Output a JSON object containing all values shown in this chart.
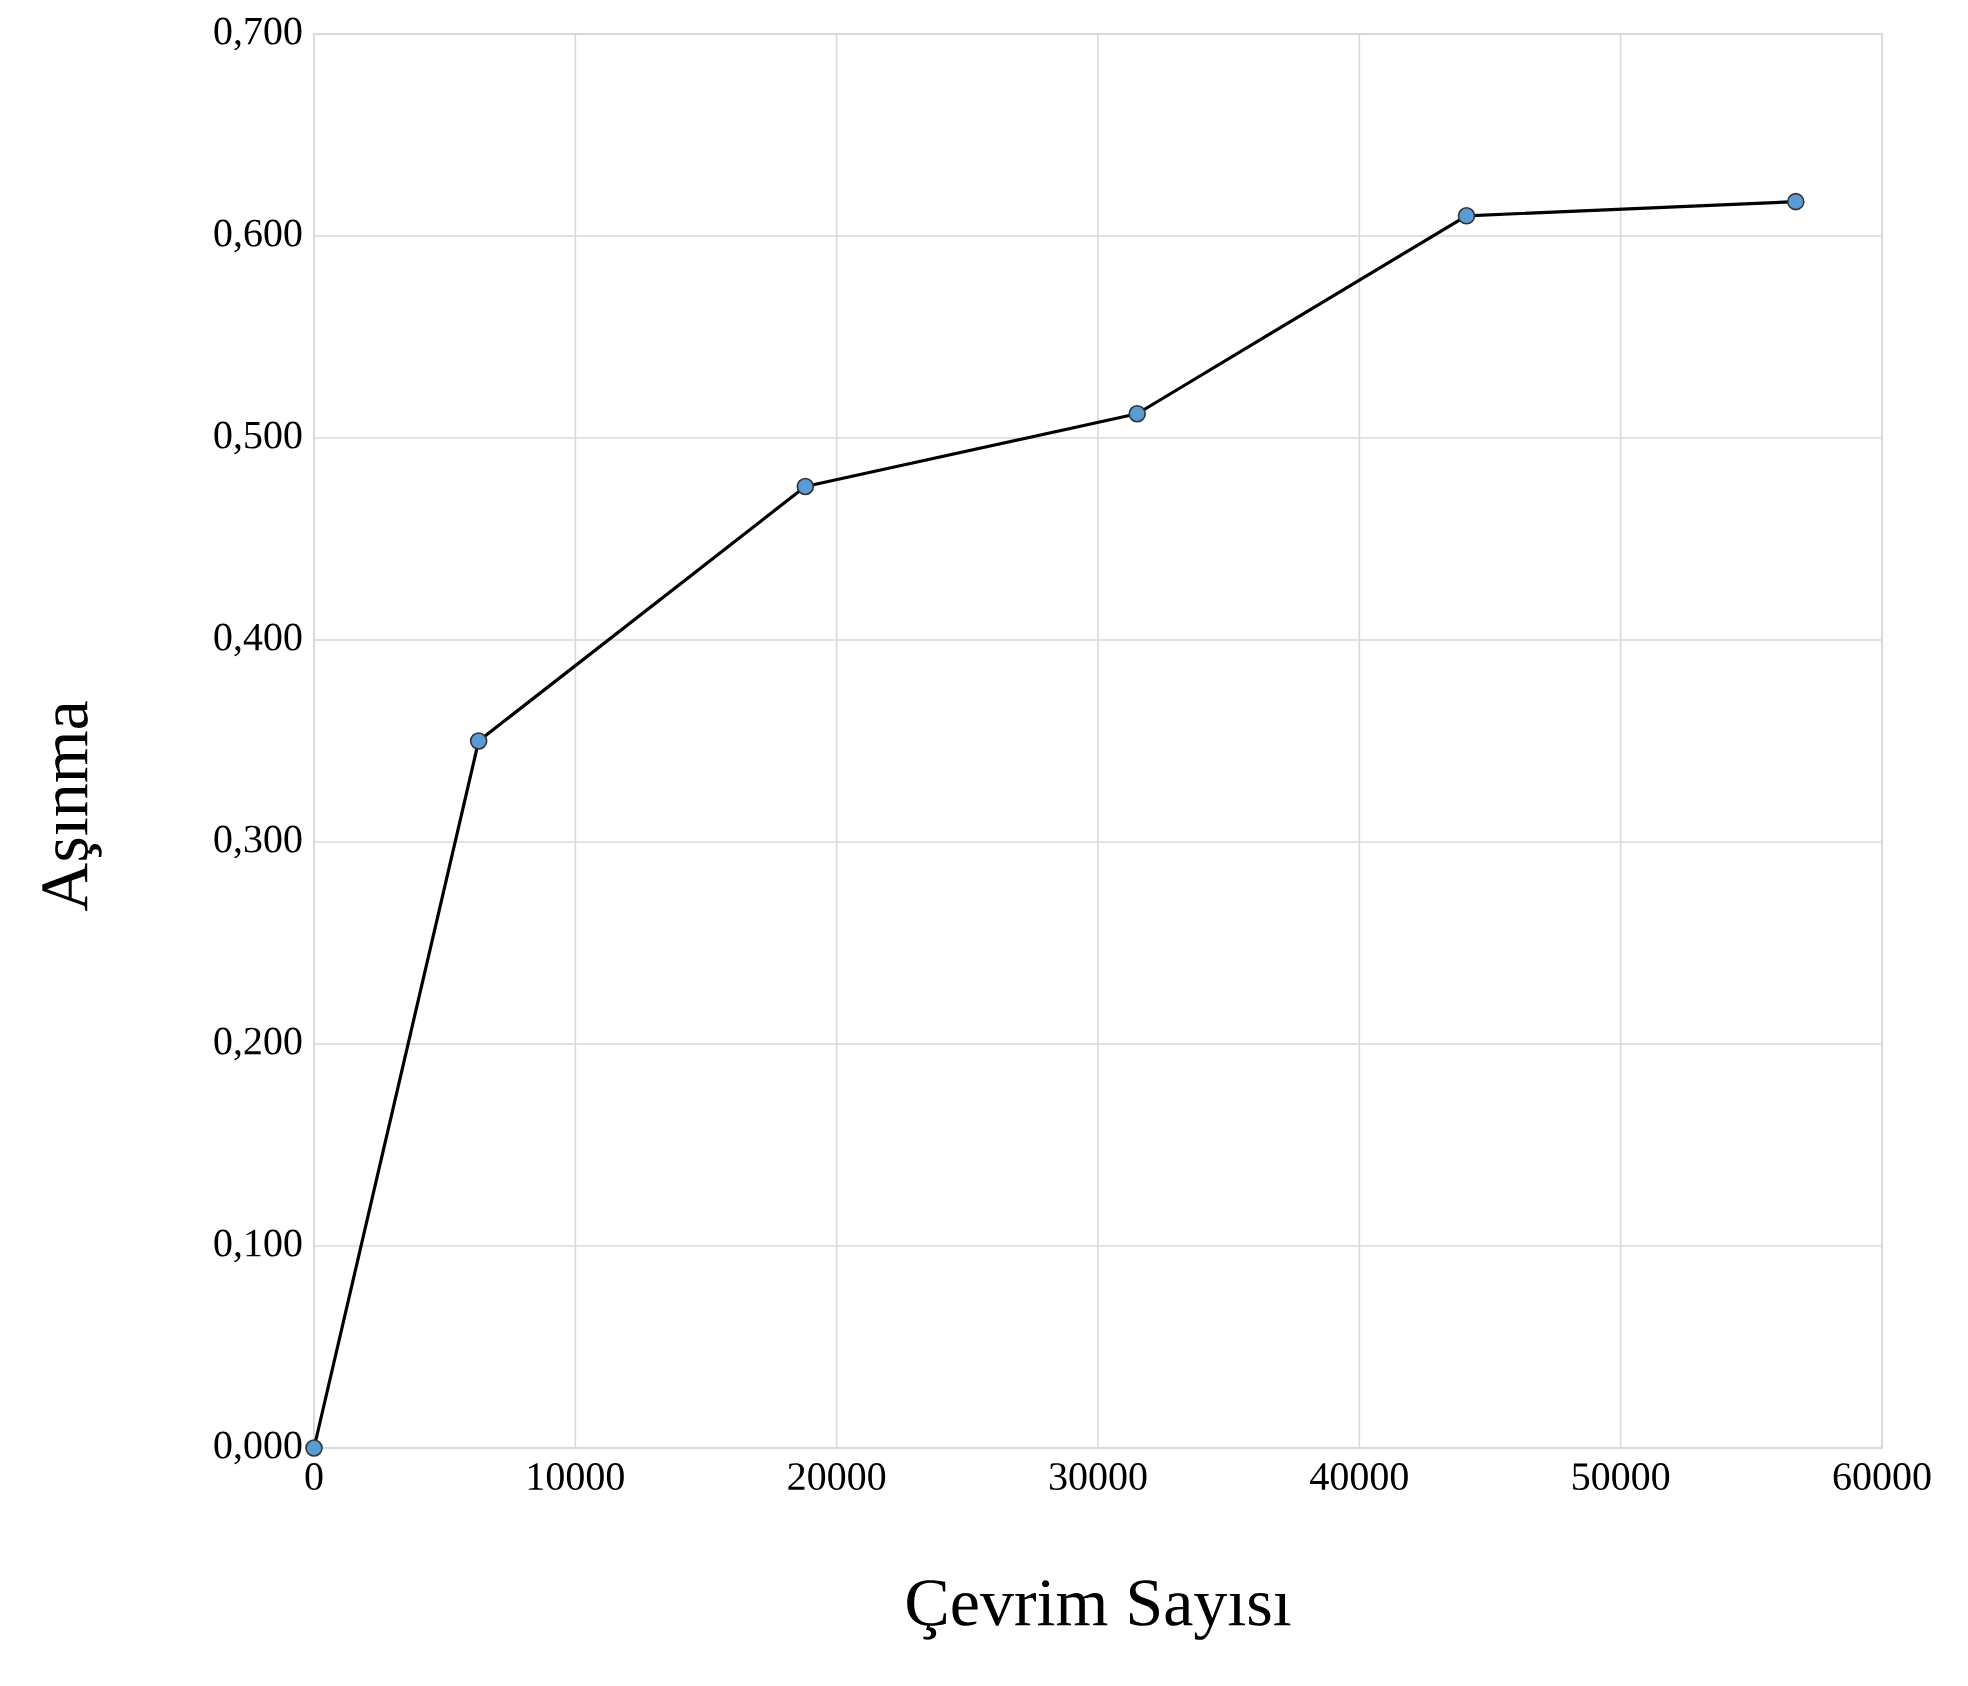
{
  "chart_data": {
    "type": "line",
    "xlabel": "Çevrim Sayısı",
    "ylabel": "Aşınma",
    "x": [
      0,
      6300,
      18800,
      31500,
      44100,
      56700
    ],
    "values": [
      0.0,
      0.35,
      0.476,
      0.512,
      0.61,
      0.617
    ],
    "color": "#000000",
    "marker": "circle",
    "line_style": "solid",
    "grid": true,
    "xlim": [
      0,
      60000
    ],
    "ylim": [
      0,
      0.7
    ],
    "xticks": [
      0,
      10000,
      20000,
      30000,
      40000,
      50000,
      60000
    ],
    "yticks": [
      {
        "value": 0,
        "label": "0,000"
      },
      {
        "value": 0.1,
        "label": "0,100"
      },
      {
        "value": 0.2,
        "label": "0,200"
      },
      {
        "value": 0.3,
        "label": "0,300"
      },
      {
        "value": 0.4,
        "label": "0,400"
      },
      {
        "value": 0.5,
        "label": "0,500"
      },
      {
        "value": 0.6,
        "label": "0,600"
      },
      {
        "value": 0.7,
        "label": "0,700"
      }
    ]
  }
}
